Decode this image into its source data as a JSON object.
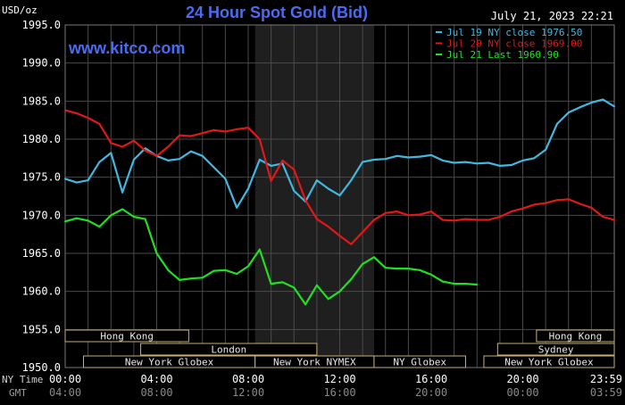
{
  "chart_data": {
    "type": "line",
    "title": "24 Hour Spot Gold (Bid)",
    "watermark": "www.kitco.com",
    "timestamp": "July 21, 2023 22:21",
    "ylabel": "USD/oz",
    "ylim": [
      1950,
      1995
    ],
    "yticks": [
      "1995.0",
      "1990.0",
      "1985.0",
      "1980.0",
      "1975.0",
      "1970.0",
      "1965.0",
      "1960.0",
      "1955.0",
      "1950.0"
    ],
    "xlim": [
      0,
      24
    ],
    "xtick_hours": [
      0,
      4,
      8,
      12,
      16,
      20,
      24
    ],
    "xrow1_label": "NY Time",
    "xrow2_label": "GMT",
    "xticks_ny": [
      "00:00",
      "04:00",
      "08:00",
      "12:00",
      "16:00",
      "20:00",
      "23:59"
    ],
    "xticks_gmt": [
      "04:00",
      "08:00",
      "12:00",
      "16:00",
      "20:00",
      "00:00",
      "03:59"
    ],
    "grid": true,
    "legend_position": "top-right",
    "nymex_hours": [
      8.3,
      13.5
    ],
    "colors": {
      "jul19": "#40b8e0",
      "jul20": "#e01818",
      "jul21": "#20e020",
      "title": "#4a6cf0",
      "legend_text": "#ffffff",
      "session_border": "#c8b078",
      "tick_text": "#ffffff",
      "grid": "#4a4a4a"
    },
    "sessions": [
      {
        "name": "Hong Kong",
        "row": 0,
        "start": 0,
        "end": 5.4
      },
      {
        "name": "Hong Kong",
        "row": 0,
        "start": 20.6,
        "end": 24
      },
      {
        "name": "London",
        "row": 1,
        "start": 3.3,
        "end": 11.0
      },
      {
        "name": "Sydney",
        "row": 1,
        "start": 18.9,
        "end": 24
      },
      {
        "name": "New York Globex",
        "row": 2,
        "start": 0.8,
        "end": 8.3
      },
      {
        "name": "New York NYMEX",
        "row": 2,
        "start": 8.3,
        "end": 13.5
      },
      {
        "name": "NY Globex",
        "row": 2,
        "start": 13.5,
        "end": 17.5
      },
      {
        "name": "New York Globex",
        "row": 2,
        "start": 18.3,
        "end": 24
      }
    ],
    "series": [
      {
        "name": "Jul 19 NY close 1976.50",
        "color": "#40b8e0",
        "x": [
          0,
          0.5,
          1,
          1.5,
          2,
          2.5,
          3,
          3.5,
          4,
          4.5,
          5,
          5.5,
          6,
          6.5,
          7,
          7.5,
          8,
          8.5,
          9,
          9.5,
          10,
          10.5,
          11,
          11.5,
          12,
          12.5,
          13,
          13.5,
          14,
          14.5,
          15,
          15.5,
          16,
          16.5,
          17,
          17.5,
          18,
          18.5,
          19,
          19.5,
          20,
          20.5,
          21,
          21.5,
          22,
          22.5,
          23,
          23.5,
          24
        ],
        "values": [
          1974.8,
          1974.3,
          1974.6,
          1977.0,
          1978.2,
          1973.0,
          1977.3,
          1978.8,
          1977.8,
          1977.2,
          1977.4,
          1978.4,
          1977.8,
          1976.3,
          1974.8,
          1971.0,
          1973.5,
          1977.3,
          1976.5,
          1976.8,
          1973.2,
          1971.8,
          1974.6,
          1973.5,
          1972.6,
          1974.6,
          1977.0,
          1977.3,
          1977.4,
          1977.8,
          1977.6,
          1977.7,
          1977.9,
          1977.2,
          1976.9,
          1977.0,
          1976.8,
          1976.9,
          1976.5,
          1976.6,
          1977.2,
          1977.5,
          1978.6,
          1982.0,
          1983.5,
          1984.2,
          1984.8,
          1985.2,
          1984.3
        ]
      },
      {
        "name": "Jul 20 NY close 1969.00",
        "color": "#e01818",
        "x": [
          0,
          0.5,
          1,
          1.5,
          2,
          2.5,
          3,
          3.5,
          4,
          4.5,
          5,
          5.5,
          6,
          6.5,
          7,
          7.5,
          8,
          8.5,
          9,
          9.5,
          10,
          10.5,
          11,
          11.5,
          12,
          12.5,
          13,
          13.5,
          14,
          14.5,
          15,
          15.5,
          16,
          16.5,
          17,
          17.5,
          18,
          18.5,
          19,
          19.5,
          20,
          20.5,
          21,
          21.5,
          22,
          22.5,
          23,
          23.5,
          24
        ],
        "values": [
          1983.8,
          1983.4,
          1982.8,
          1982.0,
          1979.5,
          1979.0,
          1979.8,
          1978.5,
          1977.8,
          1979.0,
          1980.5,
          1980.4,
          1980.8,
          1981.2,
          1981.0,
          1981.3,
          1981.5,
          1980.0,
          1974.5,
          1977.2,
          1976.0,
          1972.0,
          1969.5,
          1968.5,
          1967.3,
          1966.2,
          1967.8,
          1969.4,
          1970.3,
          1970.5,
          1970.0,
          1970.1,
          1970.5,
          1969.4,
          1969.3,
          1969.5,
          1969.4,
          1969.4,
          1969.8,
          1970.5,
          1970.9,
          1971.4,
          1971.6,
          1972.0,
          1972.1,
          1971.5,
          1971.0,
          1969.8,
          1969.4
        ]
      },
      {
        "name": "Jul 21 Last 1960.90",
        "color": "#20e020",
        "x": [
          0,
          0.5,
          1,
          1.5,
          2,
          2.5,
          3,
          3.5,
          4,
          4.5,
          5,
          5.5,
          6,
          6.5,
          7,
          7.5,
          8,
          8.5,
          9,
          9.5,
          10,
          10.5,
          11,
          11.5,
          12,
          12.5,
          13,
          13.5,
          14,
          14.5,
          15,
          15.5,
          16,
          16.5,
          17,
          17.5,
          18
        ],
        "values": [
          1969.2,
          1969.6,
          1969.3,
          1968.5,
          1970.0,
          1970.8,
          1969.8,
          1969.5,
          1965.0,
          1962.8,
          1961.5,
          1961.7,
          1961.8,
          1962.7,
          1962.8,
          1962.3,
          1963.3,
          1965.5,
          1961.0,
          1961.2,
          1960.5,
          1958.3,
          1960.8,
          1959.0,
          1960.0,
          1961.6,
          1963.6,
          1964.5,
          1963.1,
          1963.0,
          1963.0,
          1962.8,
          1962.2,
          1961.3,
          1961.0,
          1961.0,
          1960.9
        ]
      }
    ]
  }
}
